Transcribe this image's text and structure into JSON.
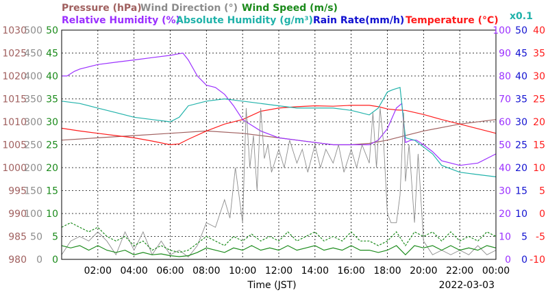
{
  "chart_data": {
    "type": "line",
    "xlabel": "Time (JST)",
    "date_label": "2022-03-03",
    "x_ticks": [
      "02:00",
      "04:00",
      "06:00",
      "08:00",
      "10:00",
      "12:00",
      "14:00",
      "16:00",
      "18:00",
      "20:00",
      "22:00",
      "00:00"
    ],
    "x_range_hours": [
      0,
      24
    ],
    "legend": [
      {
        "text": "Pressure (hPa)",
        "color": "#a0605f"
      },
      {
        "text": "Wind Direction (°)",
        "color": "#8c8c8c"
      },
      {
        "text": "Wind Speed (m/s)",
        "color": "#1a8a1a"
      },
      {
        "text": "Relative Humidity (%)",
        "color": "#9b30ff"
      },
      {
        "text": "Absolute Humidity (g/m³)",
        "color": "#20b2aa"
      },
      {
        "text": "Rain Rate(mm/h)",
        "color": "#1010d0"
      },
      {
        "text": "Temperature (°C)",
        "color": "#ff1a1a"
      },
      {
        "text": "x0.1",
        "color": "#20b2aa"
      }
    ],
    "axes": {
      "pressure": {
        "ticks": [
          "1030",
          "1025",
          "1020",
          "1015",
          "1010",
          "1005",
          "1000",
          "995",
          "990",
          "985",
          "980"
        ],
        "color": "#a0605f",
        "range": [
          980,
          1030
        ]
      },
      "wind_direction": {
        "ticks": [
          "500",
          "450",
          "400",
          "350",
          "300",
          "250",
          "200",
          "150",
          "100",
          "50",
          "0"
        ],
        "color": "#8c8c8c",
        "range": [
          0,
          500
        ]
      },
      "wind_speed": {
        "ticks": [
          "50",
          "45",
          "40",
          "35",
          "30",
          "25",
          "20",
          "15",
          "10",
          "5",
          "0"
        ],
        "color": "#1a8a1a",
        "range": [
          0,
          50
        ]
      },
      "humidity": {
        "ticks": [
          "100",
          "90",
          "80",
          "70",
          "60",
          "50",
          "40",
          "30",
          "20",
          "10",
          "0"
        ],
        "color": "#9b30ff",
        "range": [
          0,
          100
        ]
      },
      "rain": {
        "ticks": [
          "50",
          "45",
          "40",
          "35",
          "30",
          "25",
          "20",
          "15",
          "10",
          "5",
          "0"
        ],
        "color": "#1010d0",
        "range": [
          0,
          50
        ]
      },
      "temperature": {
        "ticks": [
          "40",
          "35",
          "30",
          "25",
          "20",
          "15",
          "10",
          "5",
          "0",
          "-5",
          "-10"
        ],
        "color": "#ff1a1a",
        "range": [
          -10,
          40
        ]
      }
    },
    "series": [
      {
        "key": "pressure",
        "color": "#a0605f",
        "axis": "pressure",
        "points": [
          [
            0,
            1006
          ],
          [
            2,
            1006.5
          ],
          [
            4,
            1007
          ],
          [
            6,
            1007.5
          ],
          [
            8,
            1008
          ],
          [
            10,
            1007.5
          ],
          [
            12,
            1006.5
          ],
          [
            14,
            1005.5
          ],
          [
            15,
            1005
          ],
          [
            16,
            1005
          ],
          [
            17,
            1005.3
          ],
          [
            18,
            1006
          ],
          [
            19,
            1007
          ],
          [
            20,
            1008
          ],
          [
            22,
            1009.5
          ],
          [
            24,
            1010.5
          ]
        ]
      },
      {
        "key": "temperature",
        "color": "#ff1a1a",
        "axis": "temperature",
        "points": [
          [
            0,
            18.6
          ],
          [
            1,
            18
          ],
          [
            2,
            17.5
          ],
          [
            3,
            17
          ],
          [
            4,
            16.5
          ],
          [
            5,
            15.8
          ],
          [
            6,
            15
          ],
          [
            6.5,
            15.2
          ],
          [
            7,
            16.2
          ],
          [
            8,
            18
          ],
          [
            9,
            19.5
          ],
          [
            10,
            20.5
          ],
          [
            11,
            22.3
          ],
          [
            12,
            23
          ],
          [
            13,
            23.3
          ],
          [
            14,
            23.5
          ],
          [
            15,
            23.4
          ],
          [
            16,
            23.6
          ],
          [
            17,
            23.6
          ],
          [
            17.5,
            23.3
          ],
          [
            18,
            22.8
          ],
          [
            18.5,
            22.6
          ],
          [
            19,
            22.5
          ],
          [
            20,
            21.6
          ],
          [
            21,
            20.5
          ],
          [
            22,
            19.5
          ],
          [
            23,
            18.5
          ],
          [
            24,
            17.5
          ]
        ]
      },
      {
        "key": "relative_humidity",
        "color": "#9b30ff",
        "axis": "humidity",
        "points": [
          [
            0,
            80
          ],
          [
            0.3,
            80
          ],
          [
            0.7,
            82
          ],
          [
            1,
            83
          ],
          [
            2,
            85
          ],
          [
            3,
            86
          ],
          [
            4,
            87
          ],
          [
            5,
            88
          ],
          [
            6,
            89
          ],
          [
            6.7,
            90
          ],
          [
            7,
            87
          ],
          [
            7.5,
            80
          ],
          [
            8,
            76
          ],
          [
            8.5,
            75
          ],
          [
            9,
            72
          ],
          [
            9.5,
            67
          ],
          [
            10,
            61
          ],
          [
            11,
            56
          ],
          [
            12,
            53
          ],
          [
            13,
            52
          ],
          [
            14,
            51
          ],
          [
            15,
            50
          ],
          [
            16,
            50
          ],
          [
            17,
            50
          ],
          [
            17.5,
            52
          ],
          [
            18,
            57
          ],
          [
            18.5,
            66
          ],
          [
            18.8,
            68
          ],
          [
            19,
            51
          ],
          [
            19.3,
            52
          ],
          [
            19.6,
            52
          ],
          [
            20,
            50
          ],
          [
            20.5,
            47
          ],
          [
            21,
            43
          ],
          [
            22,
            41
          ],
          [
            23,
            42
          ],
          [
            24,
            46
          ]
        ]
      },
      {
        "key": "absolute_humidity",
        "color": "#20b2aa",
        "axis": "humidity",
        "points": [
          [
            0,
            69
          ],
          [
            1,
            68
          ],
          [
            2,
            66
          ],
          [
            3,
            64
          ],
          [
            4,
            62
          ],
          [
            5,
            61
          ],
          [
            6,
            60
          ],
          [
            6.5,
            62
          ],
          [
            7,
            67
          ],
          [
            8,
            69
          ],
          [
            9,
            70
          ],
          [
            10,
            69
          ],
          [
            11,
            68
          ],
          [
            12,
            67
          ],
          [
            13,
            66
          ],
          [
            14,
            66
          ],
          [
            15,
            66
          ],
          [
            16,
            65
          ],
          [
            16.5,
            64
          ],
          [
            17,
            63
          ],
          [
            17.5,
            66
          ],
          [
            18,
            73
          ],
          [
            18.3,
            74
          ],
          [
            18.7,
            75
          ],
          [
            19,
            53
          ],
          [
            19.5,
            52
          ],
          [
            20,
            49
          ],
          [
            20.5,
            46
          ],
          [
            21,
            41
          ],
          [
            22,
            38
          ],
          [
            23,
            37
          ],
          [
            24,
            36
          ]
        ]
      },
      {
        "key": "wind_direction",
        "color": "#8c8c8c",
        "axis": "wind_direction",
        "points": [
          [
            0,
            10
          ],
          [
            0.5,
            40
          ],
          [
            1,
            50
          ],
          [
            1.5,
            40
          ],
          [
            2,
            60
          ],
          [
            2.5,
            40
          ],
          [
            3,
            10
          ],
          [
            3.5,
            60
          ],
          [
            4,
            20
          ],
          [
            4.5,
            60
          ],
          [
            5,
            10
          ],
          [
            5.5,
            40
          ],
          [
            6,
            10
          ],
          [
            6.5,
            20
          ],
          [
            7,
            5
          ],
          [
            7.5,
            30
          ],
          [
            8,
            80
          ],
          [
            8.5,
            70
          ],
          [
            9,
            130
          ],
          [
            9.3,
            90
          ],
          [
            9.6,
            200
          ],
          [
            10,
            80
          ],
          [
            10.2,
            330
          ],
          [
            10.4,
            200
          ],
          [
            10.6,
            270
          ],
          [
            10.8,
            150
          ],
          [
            11,
            330
          ],
          [
            11.2,
            220
          ],
          [
            11.4,
            250
          ],
          [
            11.6,
            190
          ],
          [
            12,
            240
          ],
          [
            12.3,
            200
          ],
          [
            12.6,
            260
          ],
          [
            13,
            210
          ],
          [
            13.3,
            240
          ],
          [
            13.6,
            190
          ],
          [
            14,
            250
          ],
          [
            14.3,
            200
          ],
          [
            14.6,
            240
          ],
          [
            15,
            210
          ],
          [
            15.3,
            250
          ],
          [
            15.6,
            190
          ],
          [
            16,
            240
          ],
          [
            16.3,
            200
          ],
          [
            16.6,
            250
          ],
          [
            17,
            210
          ],
          [
            17.2,
            320
          ],
          [
            17.4,
            200
          ],
          [
            17.6,
            330
          ],
          [
            17.8,
            250
          ],
          [
            18,
            100
          ],
          [
            18.2,
            80
          ],
          [
            18.5,
            80
          ],
          [
            18.7,
            140
          ],
          [
            18.9,
            320
          ],
          [
            19,
            170
          ],
          [
            19.2,
            250
          ],
          [
            19.5,
            80
          ],
          [
            19.7,
            230
          ],
          [
            20,
            40
          ],
          [
            20.5,
            10
          ],
          [
            21,
            20
          ],
          [
            21.5,
            10
          ],
          [
            22,
            20
          ],
          [
            22.5,
            10
          ],
          [
            23,
            30
          ],
          [
            23.5,
            10
          ],
          [
            24,
            20
          ]
        ]
      },
      {
        "key": "wind_speed",
        "color": "#1a8a1a",
        "axis": "wind_speed",
        "dashed": false,
        "points": [
          [
            0,
            3
          ],
          [
            0.5,
            2.5
          ],
          [
            1,
            3
          ],
          [
            1.5,
            2
          ],
          [
            2,
            3
          ],
          [
            2.5,
            2
          ],
          [
            3,
            1.5
          ],
          [
            3.5,
            2
          ],
          [
            4,
            1
          ],
          [
            4.5,
            1.5
          ],
          [
            5,
            1
          ],
          [
            5.5,
            1.2
          ],
          [
            6,
            0.8
          ],
          [
            6.5,
            0.6
          ],
          [
            7,
            0.8
          ],
          [
            7.5,
            1.5
          ],
          [
            8,
            2.5
          ],
          [
            8.5,
            2
          ],
          [
            9,
            1.5
          ],
          [
            9.5,
            2.5
          ],
          [
            10,
            2
          ],
          [
            10.5,
            3
          ],
          [
            11,
            2
          ],
          [
            11.5,
            2.5
          ],
          [
            12,
            2
          ],
          [
            12.5,
            3
          ],
          [
            13,
            2
          ],
          [
            13.5,
            2.5
          ],
          [
            14,
            3
          ],
          [
            14.5,
            2
          ],
          [
            15,
            2.5
          ],
          [
            15.5,
            2
          ],
          [
            16,
            3
          ],
          [
            16.5,
            2
          ],
          [
            17,
            2
          ],
          [
            17.5,
            1.5
          ],
          [
            18,
            2
          ],
          [
            18.5,
            3
          ],
          [
            19,
            1
          ],
          [
            19.5,
            3
          ],
          [
            20,
            2.5
          ],
          [
            20.5,
            3
          ],
          [
            21,
            2
          ],
          [
            21.5,
            3
          ],
          [
            22,
            2
          ],
          [
            22.5,
            2.5
          ],
          [
            23,
            2
          ],
          [
            23.5,
            3
          ],
          [
            24,
            2.5
          ]
        ]
      },
      {
        "key": "wind_gust",
        "color": "#1a8a1a",
        "axis": "wind_speed",
        "dashed": true,
        "points": [
          [
            0,
            7
          ],
          [
            0.5,
            8
          ],
          [
            1,
            7
          ],
          [
            1.5,
            6
          ],
          [
            2,
            7
          ],
          [
            2.5,
            5
          ],
          [
            3,
            4
          ],
          [
            3.5,
            5
          ],
          [
            4,
            3
          ],
          [
            4.5,
            4
          ],
          [
            5,
            2
          ],
          [
            5.5,
            3
          ],
          [
            6,
            2
          ],
          [
            6.5,
            1.5
          ],
          [
            7,
            2
          ],
          [
            7.5,
            3.5
          ],
          [
            8,
            5
          ],
          [
            8.5,
            4
          ],
          [
            9,
            3
          ],
          [
            9.5,
            5
          ],
          [
            10,
            4
          ],
          [
            10.5,
            5.5
          ],
          [
            11,
            4
          ],
          [
            11.5,
            5
          ],
          [
            12,
            4
          ],
          [
            12.5,
            6
          ],
          [
            13,
            4
          ],
          [
            13.5,
            5
          ],
          [
            14,
            6
          ],
          [
            14.5,
            4
          ],
          [
            15,
            5
          ],
          [
            15.5,
            4
          ],
          [
            16,
            6
          ],
          [
            16.5,
            4
          ],
          [
            17,
            4
          ],
          [
            17.5,
            3
          ],
          [
            18,
            4
          ],
          [
            18.5,
            6
          ],
          [
            19,
            3
          ],
          [
            19.5,
            6
          ],
          [
            20,
            5
          ],
          [
            20.5,
            6
          ],
          [
            21,
            4
          ],
          [
            21.5,
            6
          ],
          [
            22,
            4
          ],
          [
            22.5,
            5
          ],
          [
            23,
            4
          ],
          [
            23.5,
            6
          ],
          [
            24,
            5
          ]
        ]
      }
    ]
  }
}
